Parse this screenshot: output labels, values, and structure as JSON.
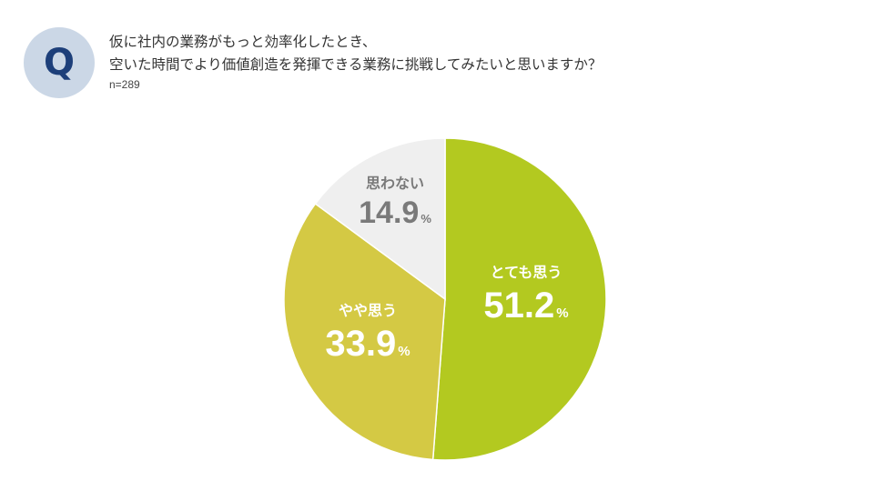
{
  "header": {
    "badge": "Q",
    "question_line1": "仮に社内の業務がもっと効率化したとき、",
    "question_line2": "空いた時間でより価値創造を発揮できる業務に挑戦してみたいと思いますか？",
    "sample_size": "n=289"
  },
  "chart_data": {
    "type": "pie",
    "start": "12 o'clock",
    "direction": "clockwise",
    "slices": [
      {
        "label": "とても思う",
        "value": 51.2,
        "value_text": "51.2",
        "unit": "%",
        "color": "#b3c920",
        "label_color": "#ffffff"
      },
      {
        "label": "やや思う",
        "value": 33.9,
        "value_text": "33.9",
        "unit": "%",
        "color": "#d4c944",
        "label_color": "#ffffff"
      },
      {
        "label": "思わない",
        "value": 14.9,
        "value_text": "14.9",
        "unit": "%",
        "color": "#efefef",
        "label_color": "#7a7a7a"
      }
    ]
  }
}
